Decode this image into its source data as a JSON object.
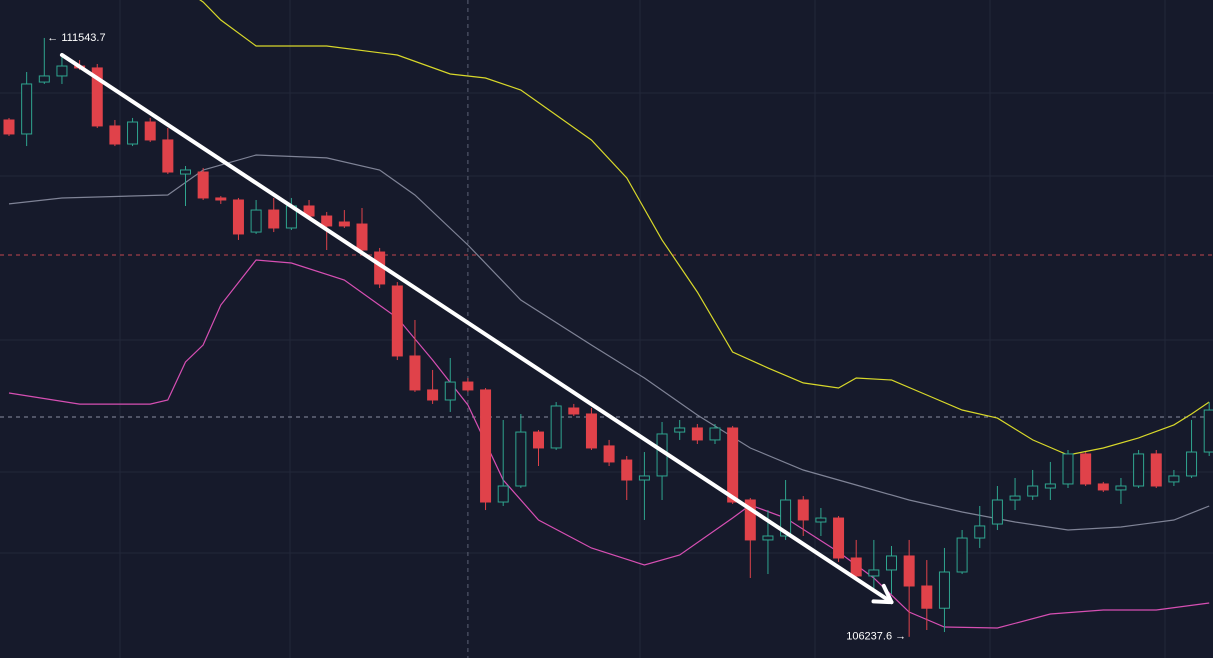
{
  "chart_data": {
    "type": "candlestick",
    "background": "#161a2b",
    "ylim": [
      106050,
      111880
    ],
    "up_color": "#2fa58f",
    "down_color": "#e0424a",
    "open": [
      110817,
      110693,
      111153,
      111207,
      111295,
      111278,
      110764,
      110604,
      110799,
      110640,
      110338,
      110356,
      110126,
      110108,
      109824,
      110019,
      109860,
      110055,
      109966,
      109913,
      109895,
      109647,
      109346,
      108726,
      108425,
      108336,
      108495,
      108425,
      107432,
      107574,
      108052,
      107911,
      108265,
      108212,
      107929,
      107804,
      107627,
      107663,
      108052,
      108088,
      107982,
      108088,
      107450,
      107096,
      107131,
      107450,
      107255,
      107290,
      106936,
      106777,
      106830,
      106954,
      106688,
      106491,
      106812,
      107113,
      107237,
      107450,
      107485,
      107556,
      107592,
      107858,
      107592,
      107539,
      107574,
      107858,
      107610,
      107663,
      107875
    ],
    "high": [
      110835,
      111242,
      111543.7,
      111393,
      111348,
      111313,
      110817,
      110835,
      110835,
      110746,
      110409,
      110392,
      110143,
      110126,
      110108,
      110126,
      110126,
      110108,
      110002,
      110019,
      110037,
      109683,
      109381,
      109045,
      108602,
      108708,
      108531,
      108442,
      108159,
      108212,
      108070,
      108318,
      108301,
      108265,
      107982,
      107840,
      107875,
      108141,
      108159,
      108123,
      108123,
      108106,
      107468,
      107361,
      107627,
      107485,
      107379,
      107308,
      107096,
      107096,
      107042,
      107096,
      106918,
      107025,
      107184,
      107397,
      107574,
      107645,
      107716,
      107787,
      107893,
      107875,
      107610,
      107645,
      107893,
      107893,
      107716,
      108159,
      108318
    ],
    "low": [
      110675,
      110586,
      111136,
      111136,
      111260,
      110746,
      110586,
      110586,
      110622,
      110338,
      110055,
      110108,
      110073,
      109754,
      109807,
      109824,
      109842,
      109931,
      109665,
      109860,
      109647,
      109328,
      108690,
      108407,
      108301,
      108230,
      108407,
      107361,
      107397,
      107556,
      107751,
      107893,
      108194,
      107893,
      107751,
      107450,
      107273,
      107450,
      107982,
      107946,
      107946,
      107415,
      106759,
      106794,
      107096,
      107131,
      107131,
      106901,
      106741,
      106653,
      106617,
      106237.6,
      106298,
      106280,
      106794,
      107025,
      107184,
      107361,
      107450,
      107450,
      107556,
      107574,
      107521,
      107415,
      107556,
      107556,
      107574,
      107645,
      107840
    ],
    "close": [
      110693,
      111136,
      111207,
      111295,
      111278,
      110764,
      110604,
      110799,
      110640,
      110356,
      110374,
      110126,
      110108,
      109807,
      110019,
      109860,
      110055,
      109966,
      109878,
      109878,
      109665,
      109364,
      108726,
      108425,
      108336,
      108495,
      108425,
      107432,
      107574,
      108052,
      107911,
      108283,
      108212,
      107911,
      107787,
      107627,
      107663,
      108035,
      108088,
      107982,
      108088,
      107432,
      107096,
      107131,
      107450,
      107273,
      107290,
      106936,
      106777,
      106830,
      106954,
      106688,
      106491,
      106812,
      107113,
      107220,
      107450,
      107485,
      107574,
      107592,
      107858,
      107592,
      107539,
      107574,
      107858,
      107574,
      107663,
      107875,
      108247
    ],
    "lines": [
      {
        "color": "#d8d82a",
        "x": [
          10,
          11,
          12,
          14,
          18,
          22,
          25,
          27,
          29,
          31,
          33,
          35,
          37,
          39,
          41,
          43,
          45,
          47,
          48,
          50,
          52,
          54,
          56,
          58,
          60,
          62,
          64,
          66,
          67,
          68
        ],
        "values": [
          111969,
          111862,
          111703,
          111472,
          111472,
          111393,
          111224,
          111189,
          111083,
          110861,
          110640,
          110303,
          109754,
          109293,
          108761,
          108620,
          108487,
          108442,
          108531,
          108513,
          108380,
          108247,
          108176,
          107982,
          107849,
          107911,
          108000,
          108115,
          108212,
          108318
        ]
      },
      {
        "color": "#7f8396",
        "x": [
          0,
          3,
          9,
          11,
          14,
          18,
          21,
          23,
          26,
          29,
          33,
          36,
          39,
          42,
          45,
          48,
          51,
          54,
          57,
          60,
          63,
          66,
          68
        ],
        "values": [
          110073,
          110126,
          110152,
          110374,
          110507,
          110481,
          110374,
          110152,
          109709,
          109222,
          108823,
          108531,
          108203,
          107911,
          107716,
          107583,
          107450,
          107344,
          107255,
          107184,
          107211,
          107273,
          107397
        ]
      },
      {
        "color": "#d64fb3",
        "x": [
          0,
          4,
          8,
          9,
          10,
          11,
          12,
          14,
          16,
          19,
          22,
          24,
          26,
          28,
          30,
          33,
          36,
          38,
          41,
          42,
          44,
          47,
          49,
          51,
          53,
          56,
          59,
          62,
          65,
          68
        ],
        "values": [
          108398,
          108300,
          108300,
          108336,
          108673,
          108823,
          109178,
          109576,
          109550,
          109399,
          109063,
          108690,
          108292,
          107627,
          107273,
          107025,
          106874,
          106963,
          107290,
          107406,
          107290,
          106989,
          106759,
          106458,
          106325,
          106316,
          106440,
          106475,
          106475,
          106537
        ]
      }
    ],
    "price_lines": [
      {
        "value": 109621,
        "color": "#c0474f"
      },
      {
        "value": 108185,
        "color": "#8a8ea0"
      }
    ],
    "crosshair_index": 26,
    "trend_arrow": {
      "from": [
        3,
        111393
      ],
      "to": [
        50,
        106545
      ],
      "color": "#ffffff"
    },
    "annotations": [
      {
        "text": "← 111543.7",
        "value": 111543.7,
        "index": 2
      },
      {
        "text": "106237.6 →",
        "value": 106237.6,
        "index": 51
      }
    ]
  }
}
